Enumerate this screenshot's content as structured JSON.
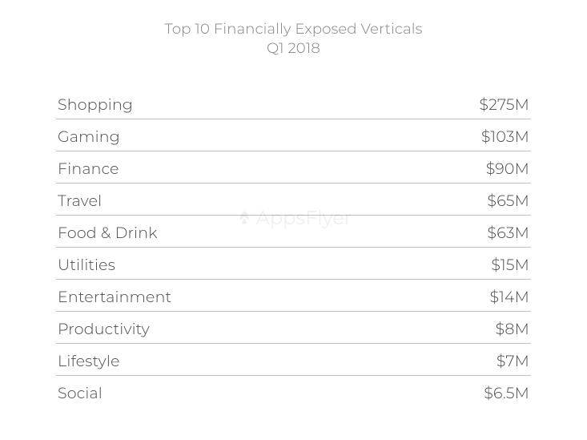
{
  "title": {
    "line1": "Top 10 Financially Exposed Verticals",
    "line2": "Q1 2018",
    "fontsize": 18,
    "color": "#808080"
  },
  "table": {
    "type": "table",
    "label_fontsize": 19,
    "value_fontsize": 19,
    "text_color": "#4a4a4a",
    "border_color": "#bfbfbf",
    "background_color": "#ffffff",
    "rows": [
      {
        "label": "Shopping",
        "value": "$275M"
      },
      {
        "label": "Gaming",
        "value": "$103M"
      },
      {
        "label": "Finance",
        "value": "$90M"
      },
      {
        "label": "Travel",
        "value": "$65M"
      },
      {
        "label": "Food & Drink",
        "value": "$63M"
      },
      {
        "label": "Utilities",
        "value": "$15M"
      },
      {
        "label": "Entertainment",
        "value": "$14M"
      },
      {
        "label": "Productivity",
        "value": "$8M"
      },
      {
        "label": "Lifestyle",
        "value": "$7M"
      },
      {
        "label": "Social",
        "value": "$6.5M"
      }
    ]
  },
  "watermark": {
    "text": "AppsFlyer",
    "icon": "leaf-icon",
    "opacity": 0.06,
    "fontsize": 24
  }
}
